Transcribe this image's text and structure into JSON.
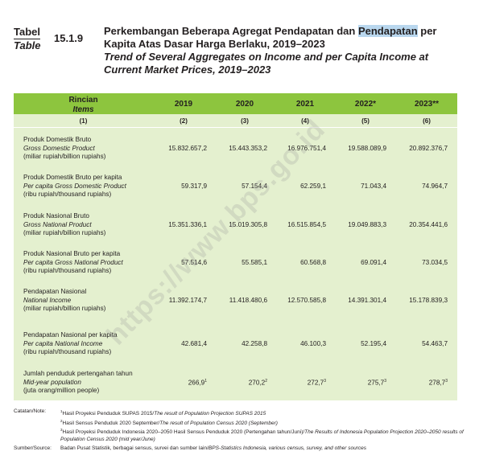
{
  "header": {
    "tabel_id": "Tabel",
    "tabel_en": "Table",
    "number": "15.1.9",
    "title_id_pre": "Perkembangan Beberapa Agregat Pendapatan dan ",
    "title_id_hl": "Pendapatan",
    "title_id_post": " per Kapita Atas Dasar Harga Berlaku, 2019–2023",
    "title_en": "Trend of Several Aggregates on Income and per Capita Income at Current Market Prices, 2019–2023"
  },
  "table": {
    "header": {
      "rincian": "Rincian",
      "items": "Items",
      "years": [
        "2019",
        "2020",
        "2021",
        "2022*",
        "2023**"
      ],
      "colnums": [
        "(1)",
        "(2)",
        "(3)",
        "(4)",
        "(5)",
        "(6)"
      ]
    },
    "rows": [
      {
        "label": "Produk Domestik Bruto",
        "label_en": "Gross Domestic Product",
        "unit": "(miliar rupiah/billion rupiahs)",
        "values": [
          "15.832.657,2",
          "15.443.353,2",
          "16.976.751,4",
          "19.588.089,9",
          "20.892.376,7"
        ]
      },
      {
        "label": "Produk Domestik Bruto per kapita",
        "label_en": "Per capita Gross Domestic Product",
        "unit": "(ribu rupiah/thousand rupiahs)",
        "values": [
          "59.317,9",
          "57.154,4",
          "62.259,1",
          "71.043,4",
          "74.964,7"
        ]
      },
      {
        "label": "Produk Nasional Bruto",
        "label_en": "Gross National Product",
        "unit": "(miliar rupiah/billion rupiahs)",
        "values": [
          "15.351.336,1",
          "15.019.305,8",
          "16.515.854,5",
          "19.049.883,3",
          "20.354.441,6"
        ]
      },
      {
        "label": "Produk Nasional Bruto per kapita",
        "label_en": "Per capita Gross National Product",
        "unit": "(ribu rupiah/thousand rupiahs)",
        "values": [
          "57.514,6",
          "55.585,1",
          "60.568,8",
          "69.091,4",
          "73.034,5"
        ]
      },
      {
        "label": "Pendapatan Nasional",
        "label_en": "National Income",
        "unit": "(miliar rupiah/billion rupiahs)",
        "values": [
          "11.392.174,7",
          "11.418.480,6",
          "12.570.585,8",
          "14.391.301,4",
          "15.178.839,3"
        ]
      },
      {
        "label": "Pendapatan Nasional per kapita",
        "label_en": "Per capita National Income",
        "unit": "(ribu rupiah/thousand rupiahs)",
        "values": [
          "42.681,4",
          "42.258,8",
          "46.100,3",
          "52.195,4",
          "54.463,7"
        ]
      },
      {
        "label": "Jumlah penduduk pertengahan tahun",
        "label_en": "Mid-year population",
        "unit": "(juta orang/million people)",
        "values": [
          "266,9",
          "270,2",
          "272,7",
          "275,7",
          "278,7"
        ],
        "sups": [
          "1",
          "2",
          "3",
          "3",
          "3"
        ]
      }
    ]
  },
  "notes": {
    "catatan_label": "Catatan/Note:",
    "n1_sup": "1",
    "n1_id": "Hasil Proyeksi Penduduk SUPAS 2015/",
    "n1_en": "The result of Population Projection SUPAS 2015",
    "n2_sup": "2",
    "n2_id": "Hasil Sensus Penduduk 2020 September/",
    "n2_en": "The result of Population Census 2020 (September)",
    "n3_sup": "3",
    "n3_id": "Hasil Proyeksi Penduduk Indonesia 2020–2050 Hasil Sensus Penduduk 2020 (Pertengahan tahun/Juni)/",
    "n3_en": "The Results of Indonesia Population Projection 2020–2050 results of Population Census 2020 (mid year/June)",
    "sumber_label": "Sumber/Source:",
    "sumber_id": "Badan Pusat Statistik, berbagai sensus, survei dan sumber lain/",
    "sumber_en": "BPS-Statistics Indonesia, various census, survey, and other sources"
  },
  "watermark": "https://www.bps.go.id"
}
